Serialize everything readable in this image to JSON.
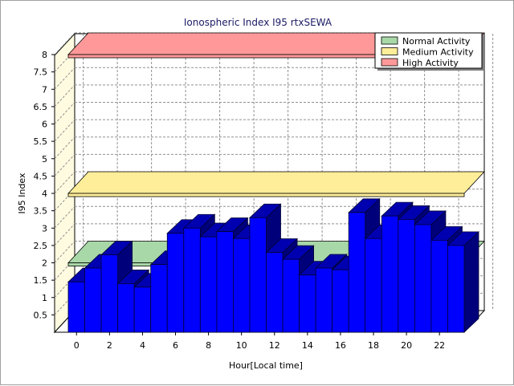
{
  "chart_data": {
    "type": "bar",
    "title": "Ionospheric Index I95 rtxSEWA",
    "xlabel": "Hour[Local time]",
    "ylabel": "I95 Index",
    "x_ticks": [
      "0",
      "2",
      "4",
      "6",
      "8",
      "10",
      "12",
      "14",
      "16",
      "18",
      "20",
      "22"
    ],
    "y_ticks": [
      "0.5",
      "1",
      "1.5",
      "2",
      "2.5",
      "3",
      "3.5",
      "4",
      "4.5",
      "5",
      "5.5",
      "6",
      "6.5",
      "7",
      "7.5",
      "8"
    ],
    "ylim": [
      0,
      8
    ],
    "grid": true,
    "categories": [
      0,
      1,
      2,
      3,
      4,
      5,
      6,
      7,
      8,
      9,
      10,
      11,
      12,
      13,
      14,
      15,
      16,
      17,
      18,
      19,
      20,
      21,
      22,
      23
    ],
    "values": [
      1.45,
      1.85,
      2.23,
      1.4,
      1.3,
      1.95,
      2.85,
      3.0,
      2.75,
      2.9,
      2.7,
      3.3,
      2.3,
      2.1,
      1.65,
      1.85,
      1.8,
      3.45,
      2.7,
      3.35,
      3.25,
      3.1,
      2.65,
      2.5
    ],
    "bar_color": "#0000ff",
    "bands": [
      {
        "name": "Normal Activity",
        "value": 2.0,
        "color": "#a8d8a8"
      },
      {
        "name": "Medium Activity",
        "value": 4.0,
        "color": "#ffee99"
      },
      {
        "name": "High Activity",
        "value": 8.0,
        "color": "#ff9999"
      }
    ],
    "legend_position": "top-right"
  }
}
